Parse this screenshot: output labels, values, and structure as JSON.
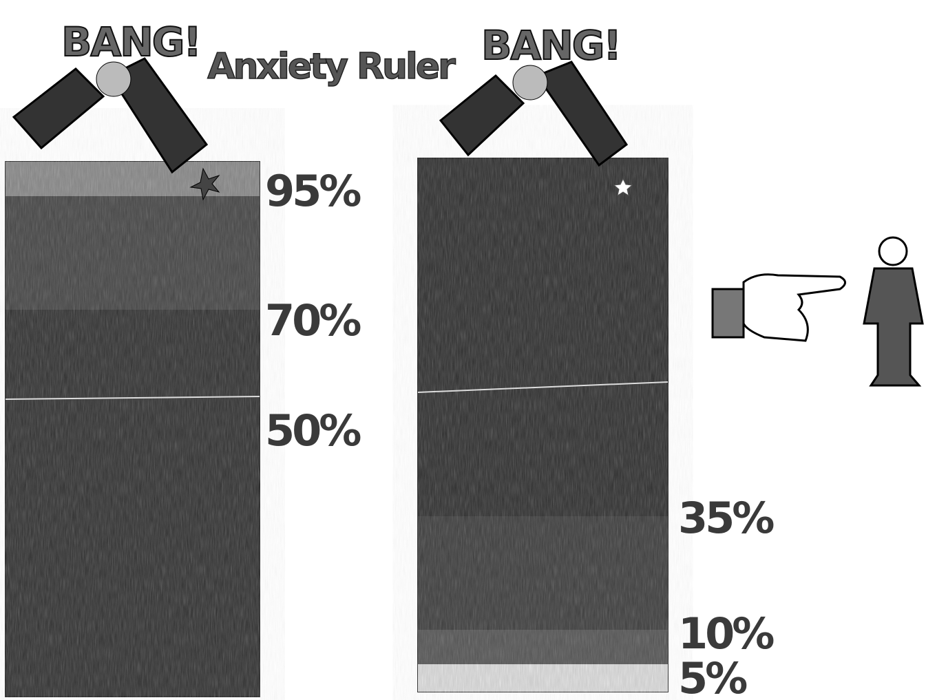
{
  "title": "Anxiety Ruler",
  "bang_labels": [
    "BANG!",
    "BANG!"
  ],
  "left_ruler": {
    "labels": [
      "95%",
      "70%",
      "50%"
    ]
  },
  "right_ruler": {
    "labels": [
      "35%",
      "10%",
      "5%"
    ]
  }
}
